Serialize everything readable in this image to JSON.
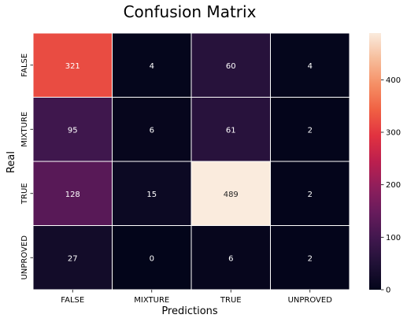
{
  "chart_data": {
    "type": "heatmap",
    "title": "Confusion Matrix",
    "xlabel": "Predictions",
    "ylabel": "Real",
    "x_categories": [
      "FALSE",
      "MIXTURE",
      "TRUE",
      "UNPROVED"
    ],
    "y_categories": [
      "FALSE",
      "MIXTURE",
      "TRUE",
      "UNPROVED"
    ],
    "values": [
      [
        321,
        4,
        60,
        4
      ],
      [
        95,
        6,
        61,
        2
      ],
      [
        128,
        15,
        489,
        2
      ],
      [
        27,
        0,
        6,
        2
      ]
    ],
    "colorbar": {
      "range": [
        0,
        489
      ],
      "ticks": [
        0,
        100,
        200,
        300,
        400
      ],
      "colormap": "rocket"
    },
    "grid": false,
    "annotations": true
  }
}
